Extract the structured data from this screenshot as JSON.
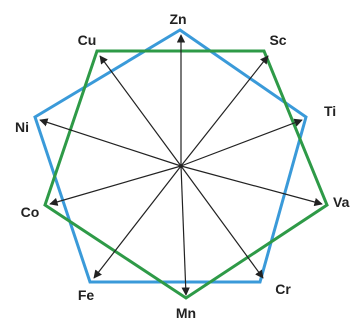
{
  "diagram": {
    "elements": [
      {
        "id": "zn",
        "label": "Zn"
      },
      {
        "id": "sc",
        "label": "Sc"
      },
      {
        "id": "ti",
        "label": "Ti"
      },
      {
        "id": "va",
        "label": "Va"
      },
      {
        "id": "cr",
        "label": "Cr"
      },
      {
        "id": "mn",
        "label": "Mn"
      },
      {
        "id": "fe",
        "label": "Fe"
      },
      {
        "id": "co",
        "label": "Co"
      },
      {
        "id": "ni",
        "label": "Ni"
      },
      {
        "id": "cu",
        "label": "Cu"
      }
    ],
    "colors": {
      "blue_polygon": "#3a9ad9",
      "green_polygon": "#2e9a47",
      "arrows": "#222222",
      "labels": "#222222"
    }
  }
}
